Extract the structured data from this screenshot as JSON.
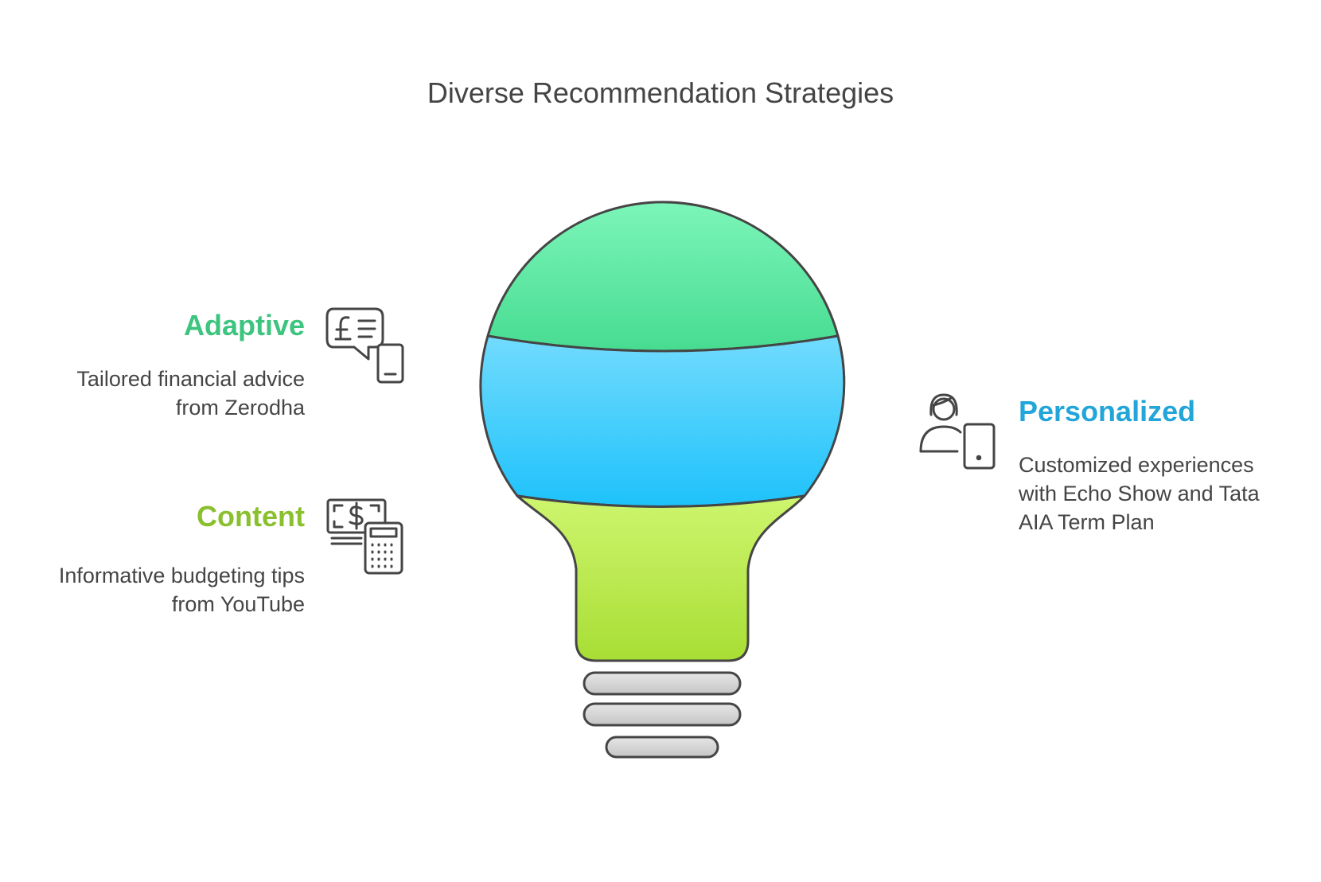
{
  "title": "Diverse Recommendation Strategies",
  "colors": {
    "adaptive": "#3dc47e",
    "content": "#8abf2e",
    "personalized": "#22a6d9",
    "stroke": "#454545"
  },
  "items": [
    {
      "heading": "Adaptive",
      "description": "Tailored financial advice from Zerodha",
      "icon": "pound-chat-phone-icon"
    },
    {
      "heading": "Content",
      "description": "Informative budgeting tips from YouTube",
      "icon": "cash-calculator-icon"
    },
    {
      "heading": "Personalized",
      "description": "Customized experiences with Echo Show and Tata AIA Term Plan",
      "icon": "person-tablet-icon"
    }
  ]
}
